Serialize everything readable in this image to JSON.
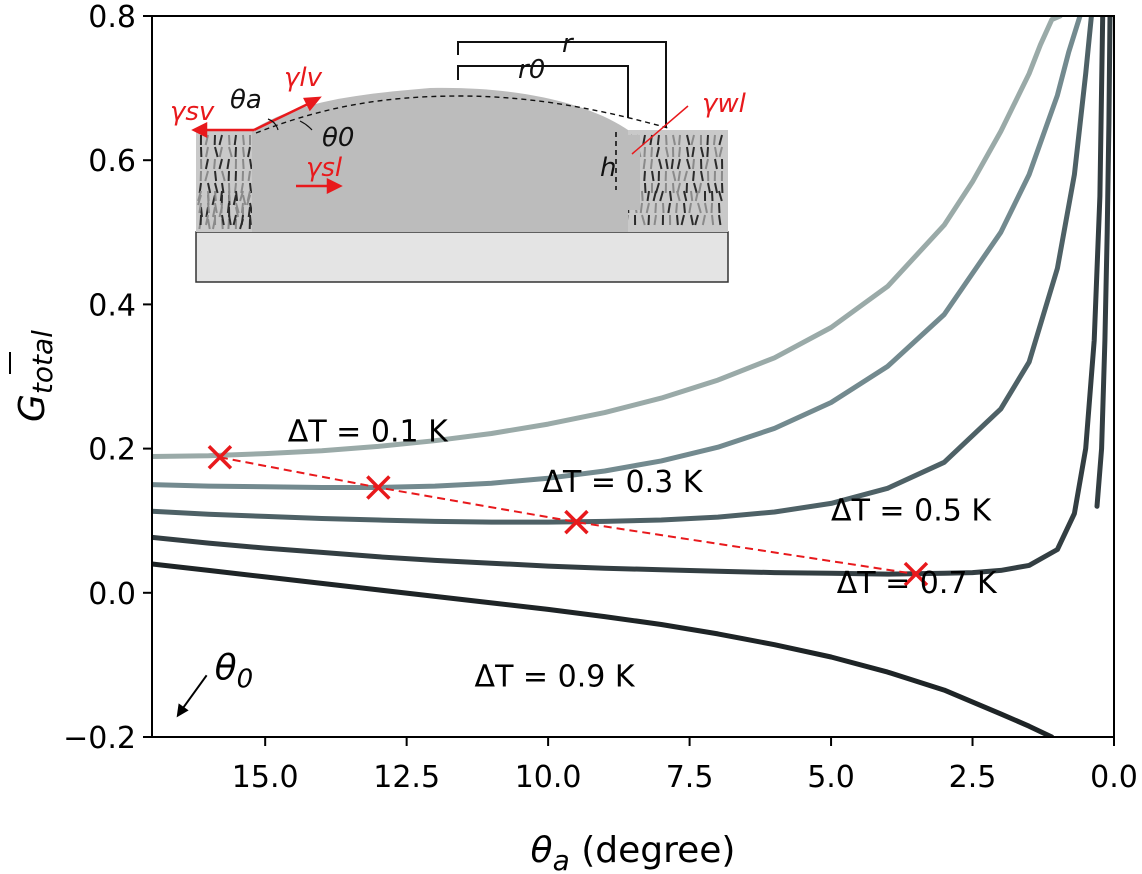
{
  "chart_data": {
    "type": "line",
    "title": "",
    "xlabel": "θ_a (degree)",
    "xlabel_parts": {
      "symbol": "θ",
      "subscript": "a",
      "unit": " (degree)"
    },
    "ylabel": "Ḡ_total",
    "ylabel_parts": {
      "symbol": "G",
      "subscript": "total"
    },
    "xlim": [
      17,
      0
    ],
    "ylim": [
      -0.2,
      0.8
    ],
    "x_ticks": [
      {
        "value": 15.0,
        "label": "15.0"
      },
      {
        "value": 12.5,
        "label": "12.5"
      },
      {
        "value": 10.0,
        "label": "10.0"
      },
      {
        "value": 7.5,
        "label": "7.5"
      },
      {
        "value": 5.0,
        "label": "5.0"
      },
      {
        "value": 2.5,
        "label": "2.5"
      },
      {
        "value": 0.0,
        "label": "0.0"
      }
    ],
    "y_ticks": [
      {
        "value": 0.8,
        "label": "0.8"
      },
      {
        "value": 0.6,
        "label": "0.6"
      },
      {
        "value": 0.4,
        "label": "0.4"
      },
      {
        "value": 0.2,
        "label": "0.2"
      },
      {
        "value": 0.0,
        "label": "0.0"
      },
      {
        "value": -0.2,
        "label": "−0.2"
      }
    ],
    "grid": false,
    "series": [
      {
        "name": "ΔT = 0.1 K",
        "label": "ΔT = 0.1 K",
        "color": "#9aaaa8",
        "x": [
          17,
          16,
          15,
          14,
          13,
          12,
          11,
          10,
          9,
          8,
          7,
          6,
          5,
          4,
          3,
          2.5,
          2,
          1.5,
          1.3,
          1.1,
          0.95
        ],
        "y": [
          0.189,
          0.19,
          0.193,
          0.197,
          0.203,
          0.211,
          0.221,
          0.234,
          0.25,
          0.27,
          0.295,
          0.326,
          0.368,
          0.425,
          0.51,
          0.57,
          0.64,
          0.72,
          0.76,
          0.795,
          0.8
        ]
      },
      {
        "name": "ΔT = 0.3 K",
        "label": "ΔT = 0.3 K",
        "color": "#738a8f",
        "x": [
          17,
          16,
          15,
          14,
          13,
          12,
          11,
          10,
          9,
          8,
          7,
          6,
          5,
          4,
          3,
          2,
          1.5,
          1.0,
          0.8,
          0.6
        ],
        "y": [
          0.15,
          0.148,
          0.147,
          0.146,
          0.146,
          0.148,
          0.152,
          0.159,
          0.169,
          0.183,
          0.202,
          0.228,
          0.264,
          0.314,
          0.386,
          0.5,
          0.58,
          0.69,
          0.75,
          0.8
        ]
      },
      {
        "name": "ΔT = 0.5 K",
        "label": "ΔT = 0.5 K",
        "color": "#4e6166",
        "x": [
          17,
          16,
          15,
          14,
          13,
          12,
          11,
          10,
          9,
          8,
          7,
          6,
          5,
          4,
          3,
          2,
          1.5,
          1.0,
          0.7,
          0.5,
          0.4
        ],
        "y": [
          0.113,
          0.109,
          0.106,
          0.103,
          0.101,
          0.099,
          0.098,
          0.098,
          0.099,
          0.101,
          0.105,
          0.112,
          0.124,
          0.145,
          0.181,
          0.255,
          0.32,
          0.45,
          0.58,
          0.72,
          0.8
        ]
      },
      {
        "name": "ΔT = 0.7 K",
        "label": "ΔT = 0.7 K",
        "color": "#333e42",
        "x": [
          17,
          16,
          15,
          14,
          13,
          12,
          11,
          10,
          9,
          8,
          7,
          6,
          5,
          4,
          3,
          2.5,
          2,
          1.5,
          1.0,
          0.7,
          0.5,
          0.35,
          0.25,
          0.2
        ],
        "y": [
          0.077,
          0.069,
          0.062,
          0.056,
          0.05,
          0.045,
          0.041,
          0.037,
          0.034,
          0.032,
          0.03,
          0.028,
          0.027,
          0.026,
          0.027,
          0.028,
          0.031,
          0.038,
          0.06,
          0.11,
          0.2,
          0.35,
          0.55,
          0.8
        ]
      },
      {
        "name": "ΔT = 0.9 K",
        "label": "ΔT = 0.9 K",
        "color": "#1e2426",
        "x": [
          17,
          16,
          15,
          14,
          13,
          12,
          11,
          10,
          9,
          8,
          7,
          6,
          5,
          4,
          3,
          2,
          1.5,
          1.1
        ],
        "y": [
          0.04,
          0.031,
          0.022,
          0.013,
          0.004,
          -0.005,
          -0.014,
          -0.023,
          -0.033,
          -0.044,
          -0.057,
          -0.072,
          -0.089,
          -0.11,
          -0.135,
          -0.168,
          -0.185,
          -0.2
        ]
      },
      {
        "name": "vertical branch",
        "label": "",
        "color": "#333e42",
        "x": [
          0.3,
          0.22,
          0.16,
          0.12,
          0.09,
          0.07
        ],
        "y": [
          0.12,
          0.2,
          0.35,
          0.5,
          0.65,
          0.8
        ]
      }
    ],
    "minima": {
      "color": "#e8191c",
      "points": [
        {
          "x": 15.8,
          "y": 0.188
        },
        {
          "x": 13.0,
          "y": 0.146
        },
        {
          "x": 9.5,
          "y": 0.098
        },
        {
          "x": 3.5,
          "y": 0.026
        }
      ]
    },
    "curve_labels": [
      {
        "text": "ΔT = 0.1 K",
        "x": 14.6,
        "y": 0.21
      },
      {
        "text": "ΔT = 0.3 K",
        "x": 10.1,
        "y": 0.14
      },
      {
        "text": "ΔT = 0.5 K",
        "x": 5.0,
        "y": 0.1
      },
      {
        "text": "ΔT = 0.7 K",
        "x": 4.9,
        "y": 0.0
      },
      {
        "text": "ΔT = 0.9 K",
        "x": 11.3,
        "y": -0.13
      }
    ],
    "annotations": [
      {
        "text": "θ0",
        "symbol": "θ",
        "subscript": "0",
        "x": 16.6,
        "y": -0.12,
        "arrow": "down-left"
      }
    ],
    "inset": {
      "labels": {
        "gamma_sv": "γsv",
        "gamma_lv": "γlv",
        "gamma_sl": "γsl",
        "gamma_wl": "γwl",
        "theta_a": "θa",
        "theta_0": "θ0",
        "r": "r",
        "r0": "r0",
        "h": "h"
      },
      "colors": {
        "force": "#e8191c",
        "liquid": "#bcbcbc",
        "substrate": "#e4e4e4",
        "texture_dark": "#2b2b2b",
        "texture_light": "#8a8a8a"
      }
    }
  }
}
